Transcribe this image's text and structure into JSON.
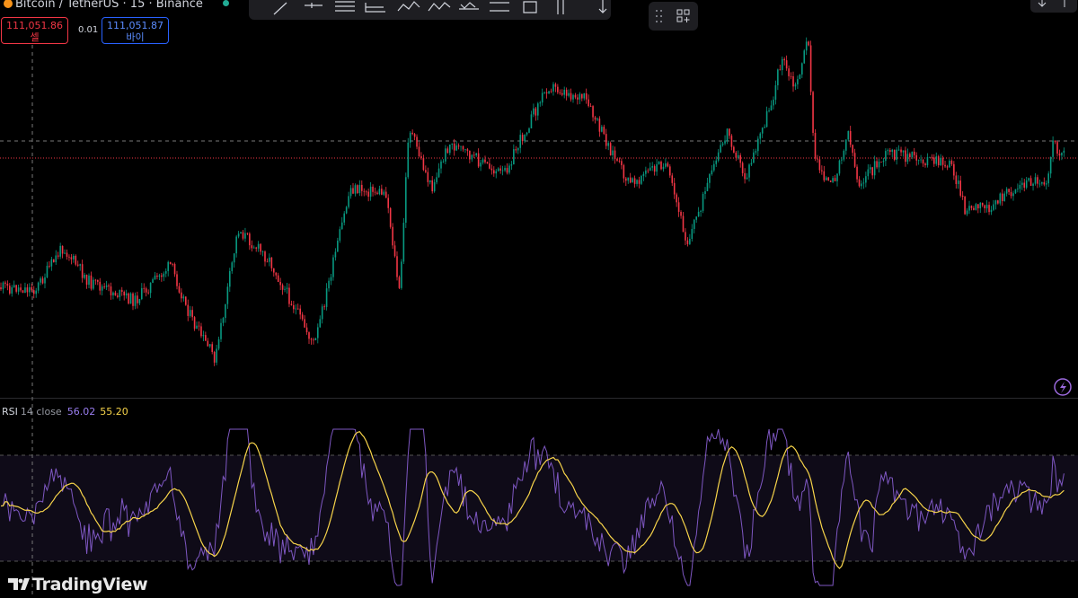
{
  "header": {
    "symbol": "Bitcoin / TetherUS · 15 · Binance",
    "sell_price": "111,051.86",
    "sell_label": "셀",
    "spread": "0.01",
    "buy_price": "111,051.87",
    "buy_label": "바이"
  },
  "indicator": {
    "name": "RSI",
    "params": "14 close",
    "rsi_value": "56.02",
    "ma_value": "55.20"
  },
  "brand": "TradingView"
}
